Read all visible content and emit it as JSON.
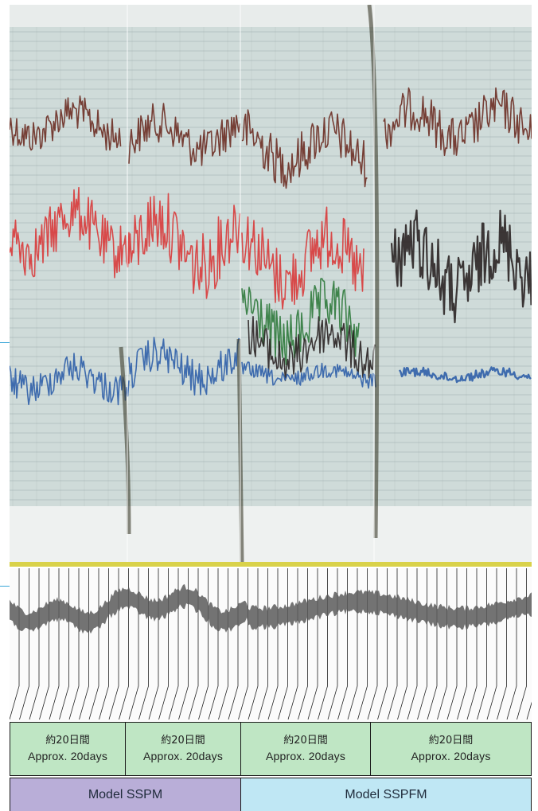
{
  "colors": {
    "paper": "#cfdbd9",
    "grid": "#8fa0a6",
    "trace_brown": "#6b2e24",
    "trace_red": "#d83a3a",
    "trace_green": "#2f7a3c",
    "trace_blue": "#2f5fa8",
    "trace_black": "#2a2424",
    "strip_trace": "#5a5a5a",
    "duration_fill": "#bfe6c4",
    "model_ssfm_fill": "#b9aed8",
    "model_sspfm_fill": "#bfe7f4"
  },
  "durations": [
    {
      "jp": "約20日間",
      "en": "Approx. 20days"
    },
    {
      "jp": "約20日間",
      "en": "Approx. 20days"
    },
    {
      "jp": "約20日間",
      "en": "Approx. 20days"
    },
    {
      "jp": "約20日間",
      "en": "Approx. 20days"
    }
  ],
  "models": [
    {
      "label": "Model SSPM"
    },
    {
      "label": "Model SSPFM"
    }
  ]
}
